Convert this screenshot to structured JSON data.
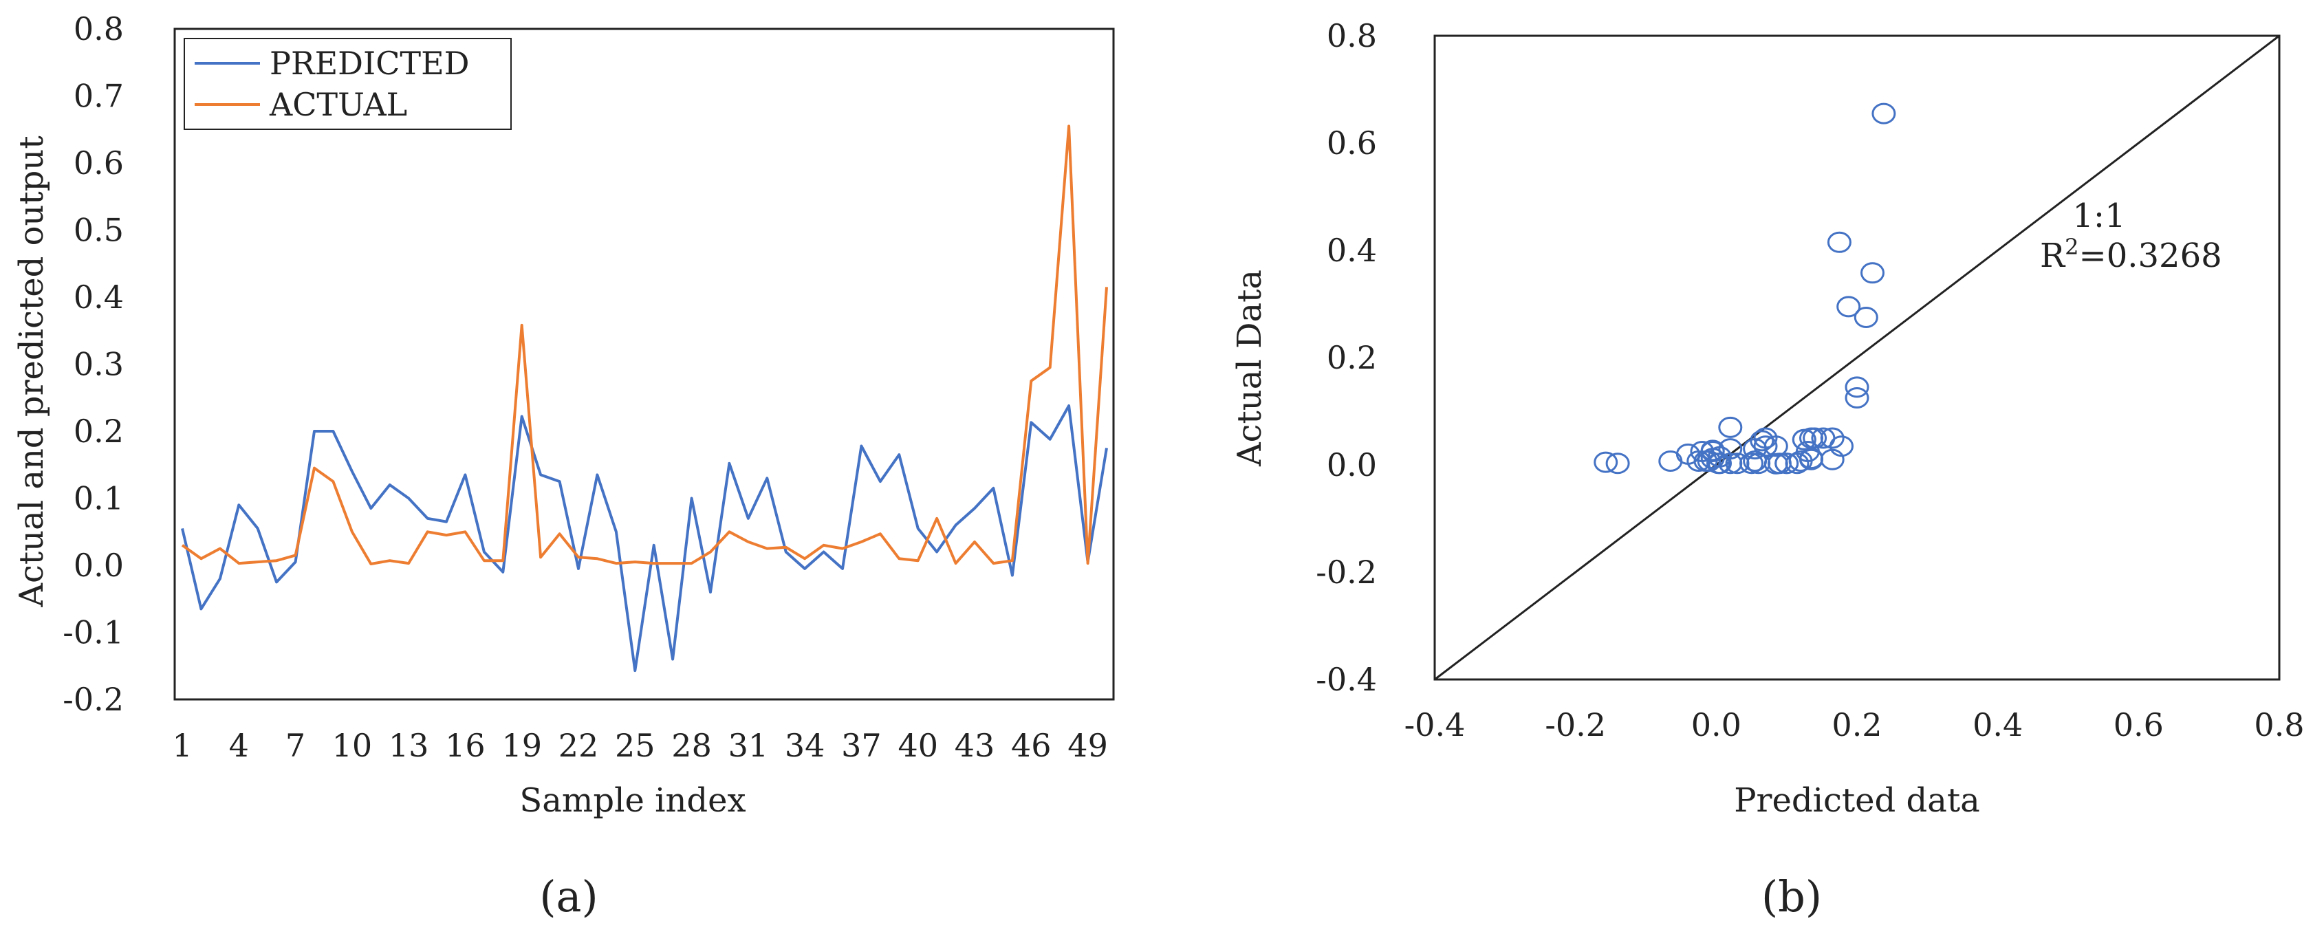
{
  "panel_a_caption": "(a)",
  "panel_b_caption": "(b)",
  "chart_data": [
    {
      "type": "line",
      "xlabel": "Sample index",
      "ylabel": "Actual and predicted output",
      "xlim": [
        1,
        50
      ],
      "ylim": [
        -0.2,
        0.8
      ],
      "yticks": [
        "0.8",
        "0.7",
        "0.6",
        "0.5",
        "0.4",
        "0.3",
        "0.2",
        "0.1",
        "0.0",
        "-0.1",
        "-0.2"
      ],
      "xticks": [
        "1",
        "4",
        "7",
        "10",
        "13",
        "16",
        "19",
        "22",
        "25",
        "28",
        "31",
        "34",
        "37",
        "40",
        "43",
        "46",
        "49"
      ],
      "legend_position": "top-left",
      "x": [
        1,
        2,
        3,
        4,
        5,
        6,
        7,
        8,
        9,
        10,
        11,
        12,
        13,
        14,
        15,
        16,
        17,
        18,
        19,
        20,
        21,
        22,
        23,
        24,
        25,
        26,
        27,
        28,
        29,
        30,
        31,
        32,
        33,
        34,
        35,
        36,
        37,
        38,
        39,
        40,
        41,
        42,
        43,
        44,
        45,
        46,
        47,
        48,
        49,
        50
      ],
      "series": [
        {
          "name": "PREDICTED",
          "color": "#4472c4",
          "values": [
            0.055,
            -0.065,
            -0.02,
            0.09,
            0.055,
            -0.025,
            0.005,
            0.2,
            0.2,
            0.14,
            0.085,
            0.12,
            0.1,
            0.07,
            0.065,
            0.135,
            0.02,
            -0.01,
            0.222,
            0.135,
            0.125,
            -0.005,
            0.135,
            0.05,
            -0.157,
            0.03,
            -0.14,
            0.1,
            -0.04,
            0.152,
            0.07,
            0.13,
            0.02,
            -0.005,
            0.02,
            -0.005,
            0.178,
            0.125,
            0.165,
            0.055,
            0.02,
            0.06,
            0.085,
            0.115,
            -0.015,
            0.213,
            0.188,
            0.238,
            0.005,
            0.175
          ]
        },
        {
          "name": "ACTUAL",
          "color": "#ed7d31",
          "values": [
            0.03,
            0.01,
            0.025,
            0.003,
            0.005,
            0.007,
            0.015,
            0.145,
            0.125,
            0.05,
            0.002,
            0.007,
            0.003,
            0.05,
            0.045,
            0.05,
            0.007,
            0.007,
            0.358,
            0.012,
            0.047,
            0.012,
            0.01,
            0.003,
            0.005,
            0.003,
            0.003,
            0.003,
            0.02,
            0.05,
            0.035,
            0.025,
            0.027,
            0.01,
            0.03,
            0.025,
            0.035,
            0.047,
            0.01,
            0.007,
            0.07,
            0.003,
            0.035,
            0.003,
            0.007,
            0.275,
            0.295,
            0.655,
            0.003,
            0.415
          ]
        }
      ]
    },
    {
      "type": "scatter",
      "xlabel": "Predicted data",
      "ylabel": "Actual Data",
      "xlim": [
        -0.4,
        0.8
      ],
      "ylim": [
        -0.4,
        0.8
      ],
      "xticks": [
        "-0.4",
        "-0.2",
        "0.0",
        "0.2",
        "0.4",
        "0.6",
        "0.8"
      ],
      "yticks": [
        "0.8",
        "0.6",
        "0.4",
        "0.2",
        "0.0",
        "-0.2",
        "-0.4"
      ],
      "reference_line": "1:1",
      "annotation_line1": "1:1",
      "annotation_r2_prefix": "R",
      "annotation_r2_sup": "2",
      "annotation_r2_value": "=0.3268",
      "marker_color": "#4472c4",
      "points": [
        [
          -0.157,
          0.005
        ],
        [
          -0.14,
          0.003
        ],
        [
          -0.065,
          0.007
        ],
        [
          -0.04,
          0.02
        ],
        [
          -0.025,
          0.007
        ],
        [
          -0.02,
          0.025
        ],
        [
          -0.015,
          0.007
        ],
        [
          -0.01,
          0.007
        ],
        [
          -0.005,
          0.012
        ],
        [
          -0.005,
          0.027
        ],
        [
          -0.005,
          0.025
        ],
        [
          0.003,
          0.003
        ],
        [
          0.005,
          0.003
        ],
        [
          0.005,
          0.015
        ],
        [
          0.005,
          0.003
        ],
        [
          0.02,
          0.07
        ],
        [
          0.02,
          0.03
        ],
        [
          0.02,
          0.003
        ],
        [
          0.03,
          0.003
        ],
        [
          0.05,
          0.003
        ],
        [
          0.055,
          0.03
        ],
        [
          0.055,
          0.007
        ],
        [
          0.06,
          0.003
        ],
        [
          0.065,
          0.045
        ],
        [
          0.07,
          0.05
        ],
        [
          0.07,
          0.035
        ],
        [
          0.085,
          0.002
        ],
        [
          0.085,
          0.035
        ],
        [
          0.09,
          0.003
        ],
        [
          0.1,
          0.003
        ],
        [
          0.1,
          0.003
        ],
        [
          0.115,
          0.003
        ],
        [
          0.12,
          0.007
        ],
        [
          0.125,
          0.047
        ],
        [
          0.125,
          0.047
        ],
        [
          0.13,
          0.025
        ],
        [
          0.135,
          0.05
        ],
        [
          0.135,
          0.01
        ],
        [
          0.135,
          0.012
        ],
        [
          0.14,
          0.05
        ],
        [
          0.152,
          0.05
        ],
        [
          0.165,
          0.01
        ],
        [
          0.165,
          0.05
        ],
        [
          0.175,
          0.415
        ],
        [
          0.178,
          0.035
        ],
        [
          0.188,
          0.295
        ],
        [
          0.2,
          0.145
        ],
        [
          0.2,
          0.125
        ],
        [
          0.213,
          0.275
        ],
        [
          0.222,
          0.358
        ],
        [
          0.238,
          0.655
        ]
      ]
    }
  ]
}
